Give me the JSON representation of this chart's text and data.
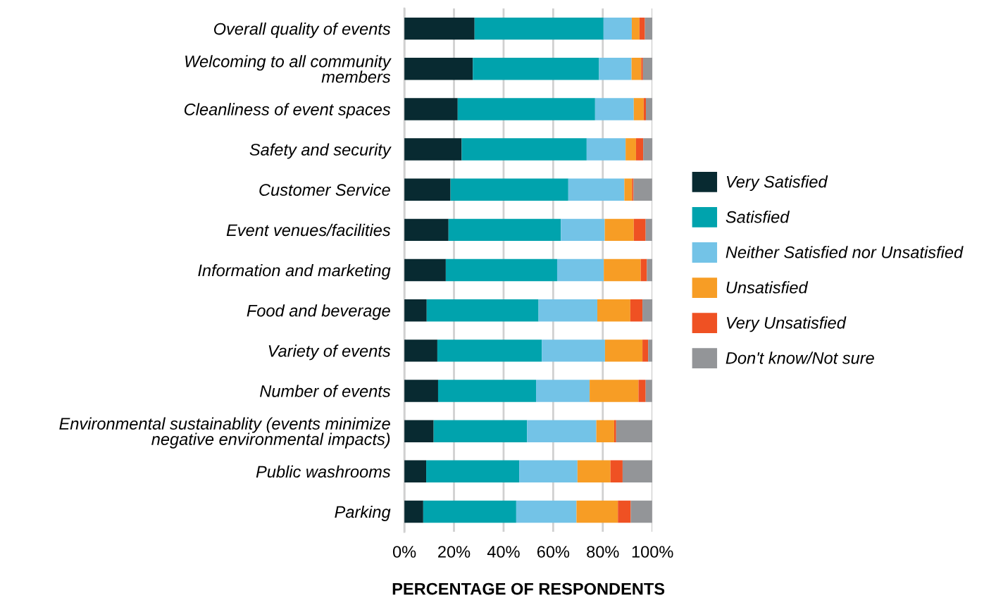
{
  "chart_data": {
    "type": "bar",
    "orientation": "horizontal",
    "stacked": true,
    "categories": [
      "Overall quality of events",
      "Welcoming to all community\nmembers",
      "Cleanliness of event spaces",
      "Safety and security",
      "Customer Service",
      "Event venues/facilities",
      "Information and marketing",
      "Food and beverage",
      "Variety of events",
      "Number of events",
      "Environmental sustainablity (events minimize\nnegative environmental impacts)",
      "Public washrooms",
      "Parking"
    ],
    "series": [
      {
        "name": "Very Satisfied",
        "color": "#082a31",
        "values": [
          28.3,
          27.6,
          21.5,
          23.1,
          18.6,
          17.8,
          16.7,
          9.0,
          13.3,
          13.6,
          11.8,
          8.8,
          7.6
        ]
      },
      {
        "name": "Satisfied",
        "color": "#00a3ad",
        "values": [
          52.0,
          50.9,
          55.4,
          50.4,
          47.5,
          45.3,
          44.9,
          45.1,
          42.1,
          39.5,
          37.7,
          37.5,
          37.5
        ]
      },
      {
        "name": "Neither Satisfied nor Unsatisfied",
        "color": "#73c3e7",
        "values": [
          11.4,
          13.1,
          15.6,
          15.7,
          22.6,
          17.7,
          18.8,
          23.7,
          25.5,
          21.6,
          27.9,
          23.5,
          24.3
        ]
      },
      {
        "name": "Unsatisfied",
        "color": "#f79d25",
        "values": [
          3.1,
          3.9,
          4.0,
          4.2,
          3.1,
          11.7,
          14.9,
          13.3,
          15.1,
          19.7,
          7.2,
          13.3,
          16.7
        ]
      },
      {
        "name": "Very Unsatisfied",
        "color": "#ef5123",
        "values": [
          2.2,
          0.7,
          0.9,
          2.9,
          0.6,
          4.8,
          2.5,
          4.9,
          2.3,
          2.9,
          0.8,
          4.9,
          5.2
        ]
      },
      {
        "name": "Don't know/Not sure",
        "color": "#939598",
        "values": [
          3.0,
          3.8,
          2.6,
          3.8,
          7.5,
          2.6,
          2.2,
          4.1,
          1.8,
          2.6,
          14.6,
          12.0,
          8.6
        ]
      }
    ],
    "xlabel": "PERCENTAGE OF RESPONDENTS",
    "xlim": [
      0,
      100
    ],
    "xticks": [
      {
        "value": 0,
        "label": "0%"
      },
      {
        "value": 20,
        "label": "20%"
      },
      {
        "value": 40,
        "label": "40%"
      },
      {
        "value": 60,
        "label": "60%"
      },
      {
        "value": 80,
        "label": "80%"
      },
      {
        "value": 100,
        "label": "100%"
      }
    ],
    "grid": "x",
    "legend": "right"
  }
}
